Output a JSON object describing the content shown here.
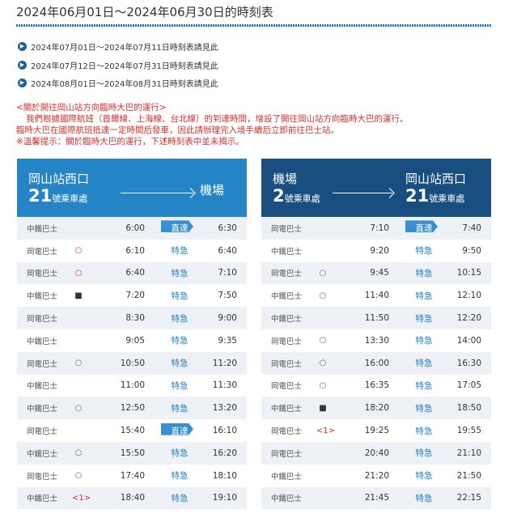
{
  "title": "2024年06月01日～2024年06月30日的時刻表",
  "links": [
    "2024年07月01日～2024年07月11日時刻表請見此",
    "2024年07月12日～2024年07月31日時刻表請見此",
    "2024年08月01日～2024年08月31日時刻表請見此"
  ],
  "notice": [
    "<關於開往岡山站方向臨時大巴的運行>",
    "我們根據國際航班（首爾線、上海線、台北線）的到達時間，增設了開往岡山站方向臨時大巴的運行。",
    "臨時大巴在國際航班抵達一定時間后發車，因此請辦理完入境手續后立即前往巴士站。",
    "※溫馨提示：關於臨時大巴的運行，下述時刻表中並未揭示。"
  ],
  "left": {
    "from": "岡山站西口",
    "from_num": "21",
    "from_suffix": "號乘車處",
    "to": "機場",
    "rows": [
      {
        "co": "中鐵巴士",
        "mk": "",
        "dep": "6:00",
        "type": "直達",
        "arr": "6:30"
      },
      {
        "co": "岡電巴士",
        "mk": "○",
        "mkc": "red",
        "dep": "6:10",
        "type": "特急",
        "arr": "6:40"
      },
      {
        "co": "岡電巴士",
        "mk": "○",
        "mkc": "red",
        "dep": "6:40",
        "type": "特急",
        "arr": "7:10"
      },
      {
        "co": "中鐵巴士",
        "mk": "■",
        "mkc": "black",
        "dep": "7:20",
        "type": "特急",
        "arr": "7:50"
      },
      {
        "co": "岡電巴士",
        "mk": "",
        "dep": "8:30",
        "type": "特急",
        "arr": "9:00"
      },
      {
        "co": "中鐵巴士",
        "mk": "",
        "dep": "9:05",
        "type": "特急",
        "arr": "9:35"
      },
      {
        "co": "岡電巴士",
        "mk": "○",
        "mkc": "gray",
        "dep": "10:50",
        "type": "特急",
        "arr": "11:20"
      },
      {
        "co": "中鐵巴士",
        "mk": "",
        "dep": "11:00",
        "type": "特急",
        "arr": "11:30"
      },
      {
        "co": "中鐵巴士",
        "mk": "○",
        "mkc": "gray",
        "dep": "12:50",
        "type": "特急",
        "arr": "13:20"
      },
      {
        "co": "岡電巴士",
        "mk": "",
        "dep": "15:40",
        "type": "直達",
        "arr": "16:10"
      },
      {
        "co": "中鐵巴士",
        "mk": "○",
        "mkc": "gray",
        "dep": "15:50",
        "type": "特急",
        "arr": "16:20"
      },
      {
        "co": "岡電巴士",
        "mk": "○",
        "mkc": "gray",
        "dep": "17:40",
        "type": "特急",
        "arr": "18:10"
      },
      {
        "co": "中鐵巴士",
        "mk": "<1>",
        "mkc": "red",
        "dep": "18:40",
        "type": "特急",
        "arr": "19:10"
      }
    ]
  },
  "right": {
    "from": "機場",
    "from_num": "2",
    "from_suffix": "號乘車處",
    "to": "岡山站西口",
    "to_num": "21",
    "to_suffix": "號乘車處",
    "rows": [
      {
        "co": "岡電巴士",
        "mk": "",
        "dep": "7:10",
        "type": "直達",
        "arr": "7:40"
      },
      {
        "co": "中鐵巴士",
        "mk": "",
        "dep": "9:20",
        "type": "特急",
        "arr": "9:50"
      },
      {
        "co": "岡電巴士",
        "mk": "○",
        "mkc": "gray",
        "dep": "9:45",
        "type": "特急",
        "arr": "10:15"
      },
      {
        "co": "中鐵巴士",
        "mk": "○",
        "mkc": "gray",
        "dep": "11:40",
        "type": "特急",
        "arr": "12:10"
      },
      {
        "co": "中鐵巴士",
        "mk": "",
        "dep": "11:50",
        "type": "特急",
        "arr": "12:20"
      },
      {
        "co": "岡電巴士",
        "mk": "○",
        "mkc": "gray",
        "dep": "13:30",
        "type": "特急",
        "arr": "14:00"
      },
      {
        "co": "岡電巴士",
        "mk": "○",
        "mkc": "gray",
        "dep": "16:00",
        "type": "特急",
        "arr": "16:30"
      },
      {
        "co": "岡電巴士",
        "mk": "○",
        "mkc": "gray",
        "dep": "16:35",
        "type": "特急",
        "arr": "17:05"
      },
      {
        "co": "中鐵巴士",
        "mk": "■",
        "mkc": "black",
        "dep": "18:20",
        "type": "特急",
        "arr": "18:50"
      },
      {
        "co": "岡電巴士",
        "mk": "<1>",
        "mkc": "red",
        "dep": "19:25",
        "type": "特急",
        "arr": "19:55"
      },
      {
        "co": "岡電巴士",
        "mk": "",
        "dep": "20:40",
        "type": "特急",
        "arr": "21:10"
      },
      {
        "co": "中鐵巴士",
        "mk": "",
        "dep": "21:20",
        "type": "特急",
        "arr": "21:50"
      },
      {
        "co": "中鐵巴士",
        "mk": "",
        "dep": "21:45",
        "type": "特急",
        "arr": "22:15"
      }
    ]
  }
}
